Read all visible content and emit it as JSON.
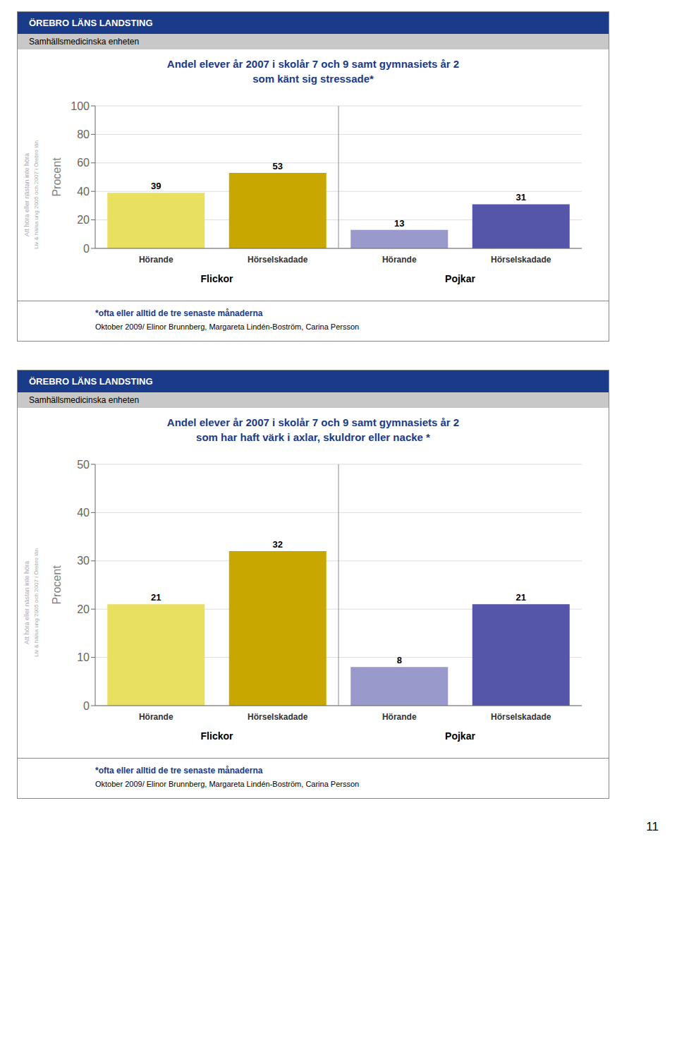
{
  "annotations": [
    "11"
  ],
  "chart_data": [
    {
      "type": "bar",
      "title": "Andel elever år 2007 i skolår 7 och 9 samt gymnasiets år 2",
      "subtitle": "som känt sig stressade*",
      "categories": [
        "Hörande",
        "Hörselskadade",
        "Hörande",
        "Hörselskadade"
      ],
      "values": [
        39,
        53,
        13,
        31
      ],
      "colors": [
        "#e8e060",
        "#c8a800",
        "#9999cc",
        "#5555aa"
      ],
      "ylabel": "Procent",
      "ylim": [
        0,
        100
      ],
      "yticks": [
        0,
        20,
        40,
        60,
        80,
        100
      ],
      "grid": true,
      "data_labels": true,
      "annotations": [
        "ÖREBRO LÄNS LANDSTING",
        "Samhällsmedicinska enheten",
        "Att höra eller nästan inte höra",
        "Liv & hälsa ung 2005 och 2007 i Örebro län",
        "*ofta eller alltid de tre senaste månaderna",
        "Oktober 2009/ Elinor Brunnberg, Margareta Lindén-Boström, Carina Persson",
        "Flickor",
        "Pojkar"
      ]
    },
    {
      "type": "bar",
      "title": "Andel elever år 2007 i skolår 7 och 9 samt gymnasiets år 2",
      "subtitle": "som har haft värk i axlar, skuldror eller nacke *",
      "categories": [
        "Hörande",
        "Hörselskadade",
        "Hörande",
        "Hörselskadade"
      ],
      "values": [
        21,
        32,
        8,
        21
      ],
      "colors": [
        "#e8e060",
        "#c8a800",
        "#9999cc",
        "#5555aa"
      ],
      "ylabel": "Procent",
      "ylim": [
        0,
        50
      ],
      "yticks": [
        0,
        10,
        20,
        30,
        40,
        50
      ],
      "grid": true,
      "data_labels": true,
      "annotations": [
        "ÖREBRO LÄNS LANDSTING",
        "Samhällsmedicinska enheten",
        "Att höra eller nästan inte höra",
        "Liv & hälsa ung 2005 och 2007 i Örebro län",
        "*ofta eller alltid de tre senaste månaderna",
        "Oktober 2009/ Elinor Brunnberg, Margareta Lindén-Boström, Carina Persson",
        "Flickor",
        "Pojkar"
      ]
    }
  ]
}
